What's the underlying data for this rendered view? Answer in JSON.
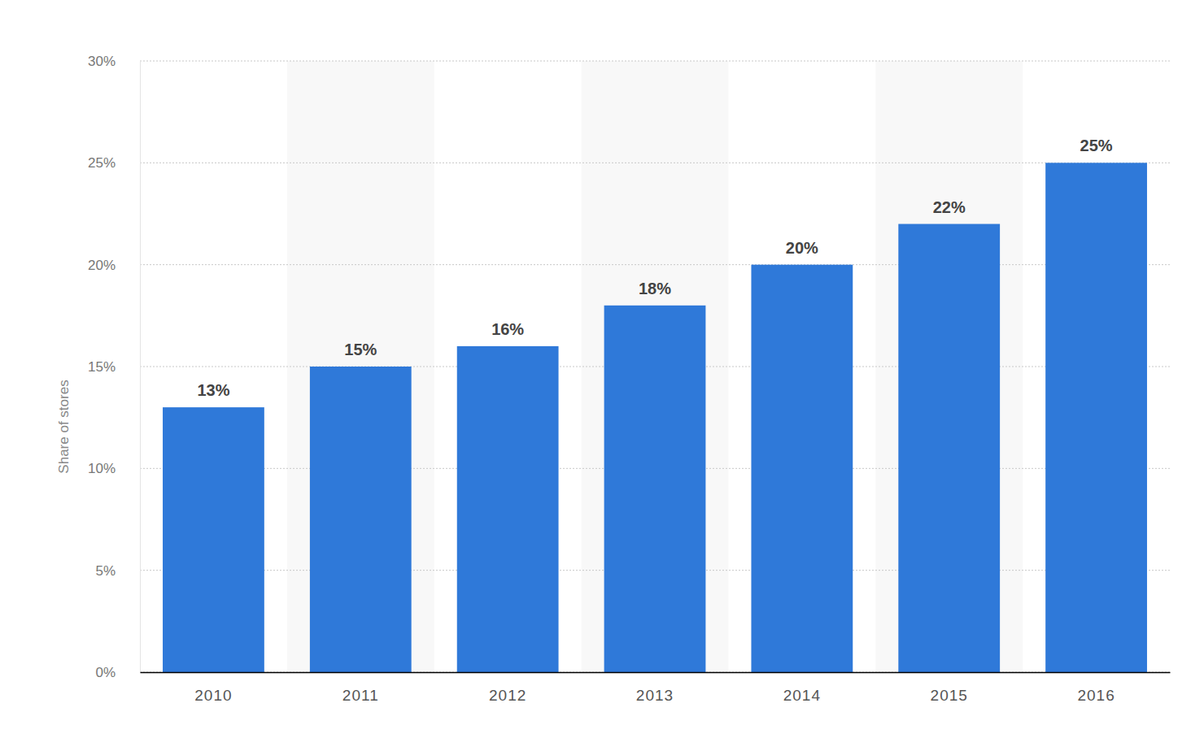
{
  "chart_data": {
    "type": "bar",
    "y_label": "Share of stores",
    "categories": [
      "2010",
      "2011",
      "2012",
      "2013",
      "2014",
      "2015",
      "2016"
    ],
    "values": [
      13,
      15,
      16,
      18,
      20,
      22,
      25
    ],
    "value_labels": [
      "13%",
      "15%",
      "16%",
      "18%",
      "20%",
      "22%",
      "25%"
    ],
    "color": "#2f79d9",
    "ylim": [
      0,
      30
    ],
    "yticks": [
      {
        "value": 0,
        "label": "0%"
      },
      {
        "value": 5,
        "label": "5%"
      },
      {
        "value": 10,
        "label": "10%"
      },
      {
        "value": 15,
        "label": "15%"
      },
      {
        "value": 20,
        "label": "20%"
      },
      {
        "value": 25,
        "label": "25%"
      },
      {
        "value": 30,
        "label": "30%"
      }
    ],
    "grid": true,
    "data_labels": true
  }
}
